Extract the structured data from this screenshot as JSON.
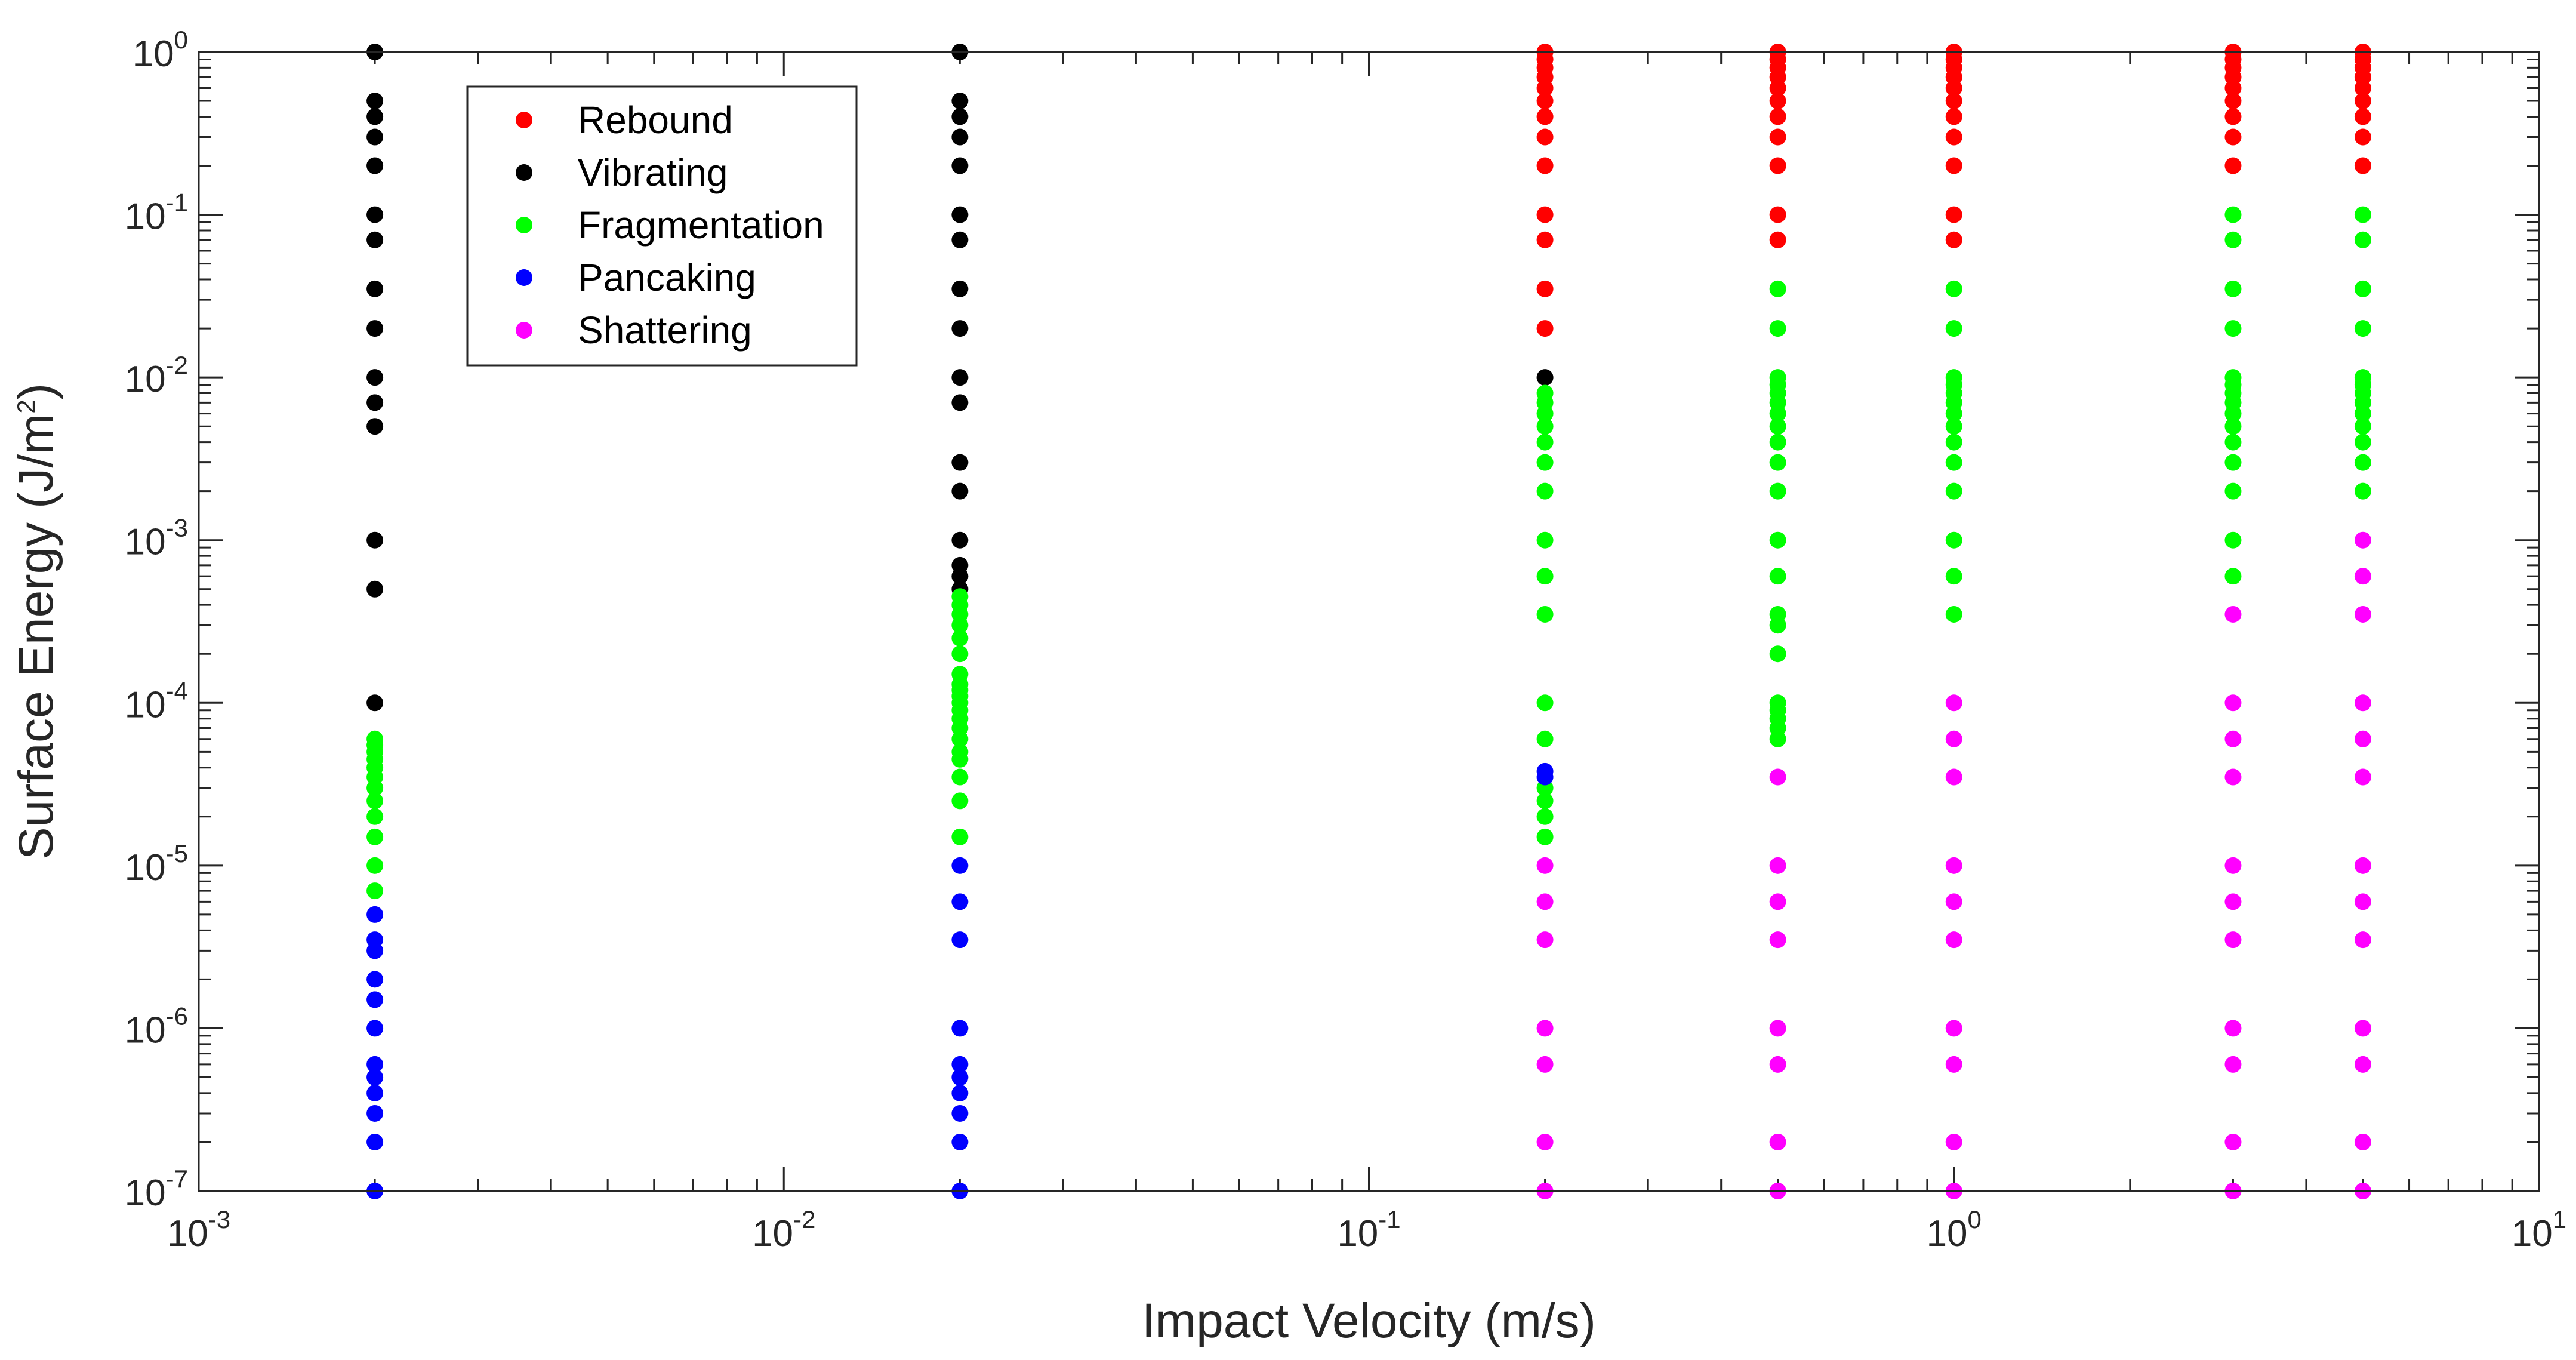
{
  "chart_data": {
    "type": "scatter",
    "title": "",
    "xlabel": "Impact Velocity (m/s)",
    "ylabel_prefix": "Surface Energy (J/m",
    "ylabel_exp": "2",
    "ylabel_suffix": ")",
    "xscale": "log",
    "yscale": "log",
    "xlim": [
      0.001,
      10
    ],
    "ylim": [
      1e-07,
      1
    ],
    "xticks": [
      {
        "value": 0.001,
        "base": "10",
        "exp": "-3"
      },
      {
        "value": 0.01,
        "base": "10",
        "exp": "-2"
      },
      {
        "value": 0.1,
        "base": "10",
        "exp": "-1"
      },
      {
        "value": 1,
        "base": "10",
        "exp": "0"
      },
      {
        "value": 10,
        "base": "10",
        "exp": "1"
      }
    ],
    "yticks": [
      {
        "value": 1e-07,
        "base": "10",
        "exp": "-7"
      },
      {
        "value": 1e-06,
        "base": "10",
        "exp": "-6"
      },
      {
        "value": 1e-05,
        "base": "10",
        "exp": "-5"
      },
      {
        "value": 0.0001,
        "base": "10",
        "exp": "-4"
      },
      {
        "value": 0.001,
        "base": "10",
        "exp": "-3"
      },
      {
        "value": 0.01,
        "base": "10",
        "exp": "-2"
      },
      {
        "value": 0.1,
        "base": "10",
        "exp": "-1"
      },
      {
        "value": 1,
        "base": "10",
        "exp": "0"
      }
    ],
    "legend_position": "top-left",
    "series": [
      {
        "name": "Rebound",
        "color": "#ff0000",
        "groups": [
          {
            "x": 0.2,
            "y": [
              1,
              0.9,
              0.8,
              0.7,
              0.6,
              0.5,
              0.4,
              0.3,
              0.2,
              0.1,
              0.07,
              0.035,
              0.02
            ]
          },
          {
            "x": 0.5,
            "y": [
              1,
              0.9,
              0.8,
              0.7,
              0.6,
              0.5,
              0.4,
              0.3,
              0.2,
              0.1,
              0.07
            ]
          },
          {
            "x": 1,
            "y": [
              1,
              0.9,
              0.8,
              0.7,
              0.6,
              0.5,
              0.4,
              0.3,
              0.2,
              0.1,
              0.07
            ]
          },
          {
            "x": 3,
            "y": [
              1,
              0.9,
              0.8,
              0.7,
              0.6,
              0.5,
              0.4,
              0.3,
              0.2
            ]
          },
          {
            "x": 5,
            "y": [
              1,
              0.9,
              0.8,
              0.7,
              0.6,
              0.5,
              0.4,
              0.3,
              0.2
            ]
          }
        ]
      },
      {
        "name": "Vibrating",
        "color": "#000000",
        "groups": [
          {
            "x": 0.002,
            "y": [
              1,
              0.5,
              0.4,
              0.3,
              0.2,
              0.1,
              0.07,
              0.035,
              0.02,
              0.01,
              0.007,
              0.005,
              0.001,
              0.0005,
              0.0001
            ]
          },
          {
            "x": 0.02,
            "y": [
              1,
              0.5,
              0.4,
              0.3,
              0.2,
              0.1,
              0.07,
              0.035,
              0.02,
              0.01,
              0.007,
              0.003,
              0.002,
              0.001,
              0.0007,
              0.0006,
              0.0005
            ]
          },
          {
            "x": 0.2,
            "y": [
              0.01
            ]
          }
        ]
      },
      {
        "name": "Fragmentation",
        "color": "#00ff00",
        "groups": [
          {
            "x": 0.002,
            "y": [
              6e-05,
              5.5e-05,
              5e-05,
              4.5e-05,
              4e-05,
              3.5e-05,
              3e-05,
              2.5e-05,
              2e-05,
              1.5e-05,
              1e-05,
              7e-06
            ]
          },
          {
            "x": 0.02,
            "y": [
              0.00045,
              0.0004,
              0.00035,
              0.0003,
              0.00025,
              0.0002,
              0.00015,
              0.00013,
              0.00012,
              0.00011,
              0.0001,
              9e-05,
              8e-05,
              7e-05,
              6e-05,
              5e-05,
              4.5e-05,
              3.5e-05,
              2.5e-05,
              1.5e-05
            ]
          },
          {
            "x": 0.2,
            "y": [
              0.008,
              0.007,
              0.006,
              0.005,
              0.004,
              0.003,
              0.002,
              0.001,
              0.0006,
              0.00035,
              0.0001,
              6e-05,
              3e-05,
              2.5e-05,
              2e-05,
              1.5e-05
            ]
          },
          {
            "x": 0.5,
            "y": [
              0.035,
              0.02,
              0.01,
              0.009,
              0.008,
              0.007,
              0.006,
              0.005,
              0.004,
              0.003,
              0.002,
              0.001,
              0.0006,
              0.00035,
              0.0003,
              0.0002,
              0.0001,
              9e-05,
              8e-05,
              7e-05,
              6e-05
            ]
          },
          {
            "x": 1,
            "y": [
              0.035,
              0.02,
              0.01,
              0.009,
              0.008,
              0.007,
              0.006,
              0.005,
              0.004,
              0.003,
              0.002,
              0.001,
              0.0006,
              0.00035
            ]
          },
          {
            "x": 3,
            "y": [
              0.1,
              0.07,
              0.035,
              0.02,
              0.01,
              0.009,
              0.008,
              0.007,
              0.006,
              0.005,
              0.004,
              0.003,
              0.002,
              0.001,
              0.0006
            ]
          },
          {
            "x": 5,
            "y": [
              0.1,
              0.07,
              0.035,
              0.02,
              0.01,
              0.009,
              0.008,
              0.007,
              0.006,
              0.005,
              0.004,
              0.003,
              0.002
            ]
          }
        ]
      },
      {
        "name": "Pancaking",
        "color": "#0000ff",
        "groups": [
          {
            "x": 0.002,
            "y": [
              5e-06,
              3.5e-06,
              3e-06,
              2e-06,
              1.5e-06,
              1e-06,
              6e-07,
              5e-07,
              4e-07,
              3e-07,
              2e-07,
              1e-07
            ]
          },
          {
            "x": 0.02,
            "y": [
              1e-05,
              6e-06,
              3.5e-06,
              1e-06,
              6e-07,
              5e-07,
              4e-07,
              3e-07,
              2e-07,
              1e-07
            ]
          },
          {
            "x": 0.2,
            "y": [
              3.8e-05,
              3.5e-05
            ]
          }
        ]
      },
      {
        "name": "Shattering",
        "color": "#ff00ff",
        "groups": [
          {
            "x": 0.2,
            "y": [
              1e-05,
              6e-06,
              3.5e-06,
              1e-06,
              6e-07,
              2e-07,
              1e-07
            ]
          },
          {
            "x": 0.5,
            "y": [
              3.5e-05,
              1e-05,
              6e-06,
              3.5e-06,
              1e-06,
              6e-07,
              2e-07,
              1e-07
            ]
          },
          {
            "x": 1,
            "y": [
              0.0001,
              6e-05,
              3.5e-05,
              1e-05,
              6e-06,
              3.5e-06,
              1e-06,
              6e-07,
              2e-07,
              1e-07
            ]
          },
          {
            "x": 3,
            "y": [
              0.00035,
              0.0001,
              6e-05,
              3.5e-05,
              1e-05,
              6e-06,
              3.5e-06,
              1e-06,
              6e-07,
              2e-07,
              1e-07
            ]
          },
          {
            "x": 5,
            "y": [
              0.001,
              0.0006,
              0.00035,
              0.0001,
              6e-05,
              3.5e-05,
              1e-05,
              6e-06,
              3.5e-06,
              1e-06,
              6e-07,
              2e-07,
              1e-07
            ]
          }
        ]
      }
    ]
  }
}
